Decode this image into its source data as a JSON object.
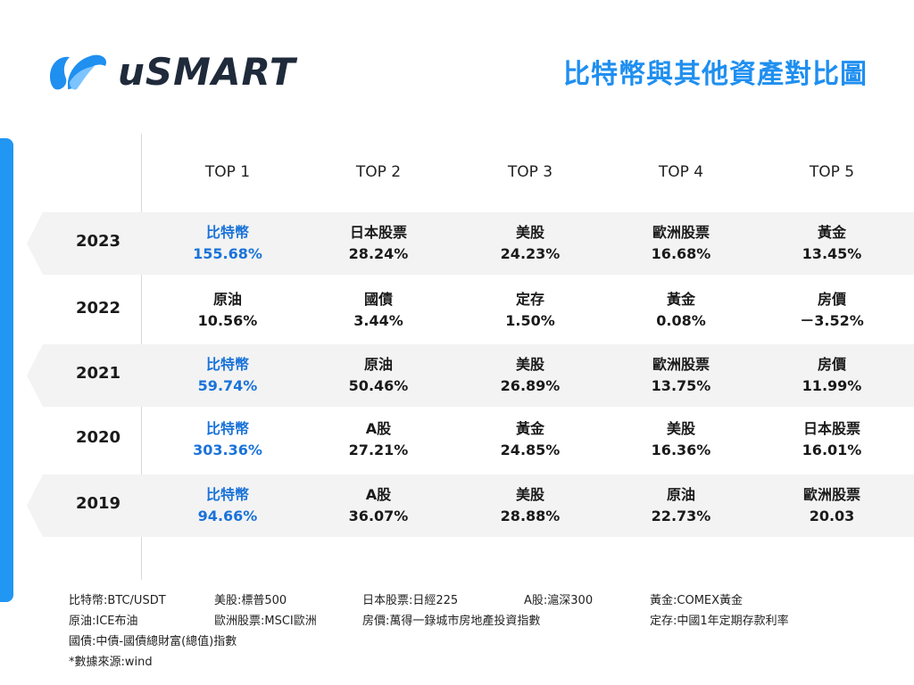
{
  "brand": {
    "name": "uSMART"
  },
  "title": "比特幣與其他資產對比圖",
  "columns": [
    "TOP 1",
    "TOP 2",
    "TOP 3",
    "TOP 4",
    "TOP 5"
  ],
  "rows": [
    {
      "year": "2023",
      "cells": [
        {
          "name": "比特幣",
          "pct": "155.68%"
        },
        {
          "name": "日本股票",
          "pct": "28.24%"
        },
        {
          "name": "美股",
          "pct": "24.23%"
        },
        {
          "name": "歐洲股票",
          "pct": "16.68%"
        },
        {
          "name": "黃金",
          "pct": "13.45%"
        }
      ]
    },
    {
      "year": "2022",
      "cells": [
        {
          "name": "原油",
          "pct": "10.56%"
        },
        {
          "name": "國債",
          "pct": "3.44%"
        },
        {
          "name": "定存",
          "pct": "1.50%"
        },
        {
          "name": "黃金",
          "pct": "0.08%"
        },
        {
          "name": "房價",
          "pct": "－3.52%"
        }
      ]
    },
    {
      "year": "2021",
      "cells": [
        {
          "name": "比特幣",
          "pct": "59.74%"
        },
        {
          "name": "原油",
          "pct": "50.46%"
        },
        {
          "name": "美股",
          "pct": "26.89%"
        },
        {
          "name": "歐洲股票",
          "pct": "13.75%"
        },
        {
          "name": "房價",
          "pct": "11.99%"
        }
      ]
    },
    {
      "year": "2020",
      "cells": [
        {
          "name": "比特幣",
          "pct": "303.36%"
        },
        {
          "name": "A股",
          "pct": "27.21%"
        },
        {
          "name": "黃金",
          "pct": "24.85%"
        },
        {
          "name": "美股",
          "pct": "16.36%"
        },
        {
          "name": "日本股票",
          "pct": "16.01%"
        }
      ]
    },
    {
      "year": "2019",
      "cells": [
        {
          "name": "比特幣",
          "pct": "94.66%"
        },
        {
          "name": "A股",
          "pct": "36.07%"
        },
        {
          "name": "美股",
          "pct": "28.88%"
        },
        {
          "name": "原油",
          "pct": "22.73%"
        },
        {
          "name": "歐洲股票",
          "pct": "20.03"
        }
      ]
    }
  ],
  "notes": {
    "line1": [
      "比特幣:BTC/USDT",
      "美股:標普500",
      "日本股票:日經225",
      "A股:滬深300",
      "黃金:COMEX黃金"
    ],
    "line2": [
      "原油:ICE布油",
      "歐洲股票:MSCI歐洲",
      "房價:萬得一錄城市房地產投資指數",
      "定存:中國1年定期存款利率"
    ],
    "line3": "國債:中債-國債總財富(總值)指數",
    "line4": "*數據來源:wind"
  },
  "colors": {
    "accent": "#1f8ff0",
    "highlight": "#1a73d9",
    "row_shade": "#f3f3f3"
  }
}
